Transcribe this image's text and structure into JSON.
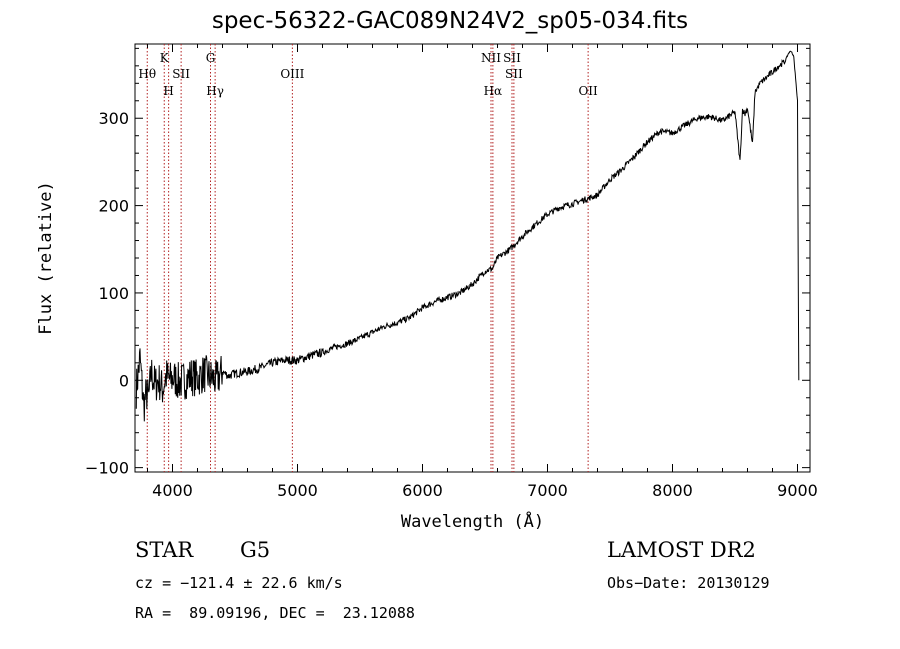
{
  "chart_data": {
    "type": "line",
    "title": "spec-56322-GAC089N24V2_sp05-034.fits",
    "xlabel": "Wavelength (Å)",
    "ylabel": "Flux (relative)",
    "xlim": [
      3700,
      9100
    ],
    "ylim": [
      -105,
      385
    ],
    "xticks": [
      4000,
      5000,
      6000,
      7000,
      8000,
      9000
    ],
    "yticks": [
      -100,
      0,
      100,
      200,
      300
    ],
    "grid": false,
    "line_color": "#000000",
    "marker_color": "#b22222",
    "series": [
      {
        "x": [
          3710,
          3740,
          3770,
          3790,
          3810,
          3830,
          3860,
          3890,
          3920,
          3950,
          3980,
          4010,
          4050,
          4100,
          4150,
          4200,
          4250,
          4300,
          4350,
          4400,
          4450,
          4500,
          4600,
          4700,
          4800,
          4900,
          5000,
          5100,
          5200,
          5300,
          5400,
          5500,
          5600,
          5700,
          5800,
          5900,
          6000,
          6100,
          6200,
          6300,
          6400,
          6500,
          6560,
          6600,
          6700,
          6800,
          6900,
          7000,
          7100,
          7200,
          7300,
          7400,
          7500,
          7600,
          7700,
          7800,
          7900,
          8000,
          8100,
          8200,
          8300,
          8400,
          8500,
          8540,
          8560,
          8580,
          8600,
          8640,
          8660,
          8680,
          8700,
          8800,
          8850,
          8900,
          8930,
          8950,
          8970,
          9000,
          9010
        ],
        "y": [
          -10,
          25,
          -30,
          -15,
          -20,
          10,
          -5,
          0,
          -10,
          5,
          0,
          3,
          -2,
          0,
          5,
          2,
          8,
          4,
          0,
          10,
          5,
          8,
          10,
          14,
          20,
          23,
          23,
          28,
          32,
          38,
          42,
          48,
          55,
          62,
          66,
          72,
          83,
          90,
          95,
          100,
          110,
          125,
          128,
          140,
          150,
          165,
          178,
          190,
          198,
          202,
          207,
          212,
          230,
          242,
          257,
          273,
          285,
          283,
          292,
          300,
          302,
          297,
          307,
          250,
          310,
          305,
          312,
          270,
          330,
          335,
          340,
          353,
          360,
          365,
          375,
          377,
          370,
          320,
          0
        ]
      }
    ],
    "lines": [
      {
        "label": "Hθ",
        "x": 3798,
        "row": 2
      },
      {
        "label": "K",
        "x": 3934,
        "row": 1
      },
      {
        "label": "H",
        "x": 3969,
        "row": 3
      },
      {
        "label": "SII",
        "x": 4069,
        "row": 2
      },
      {
        "label": "G",
        "x": 4304,
        "row": 1
      },
      {
        "label": "Hγ",
        "x": 4341,
        "row": 3
      },
      {
        "label": "OIII",
        "x": 4959,
        "row": 2
      },
      {
        "label": "NII",
        "x": 6548,
        "row": 1
      },
      {
        "label": "Hα",
        "x": 6563,
        "row": 3
      },
      {
        "label": "SII",
        "x": 6716,
        "row": 1
      },
      {
        "label": "SII",
        "x": 6731,
        "row": 2
      },
      {
        "label": "OII",
        "x": 7325,
        "row": 3
      }
    ]
  },
  "info": {
    "object_class": "STAR",
    "subclass": "G5",
    "survey": "LAMOST DR2",
    "cz": "cz = −121.4 ± 22.6 km/s",
    "obs_date": "Obs−Date: 20130129",
    "coords": "RA =  89.09196, DEC =  23.12088"
  }
}
